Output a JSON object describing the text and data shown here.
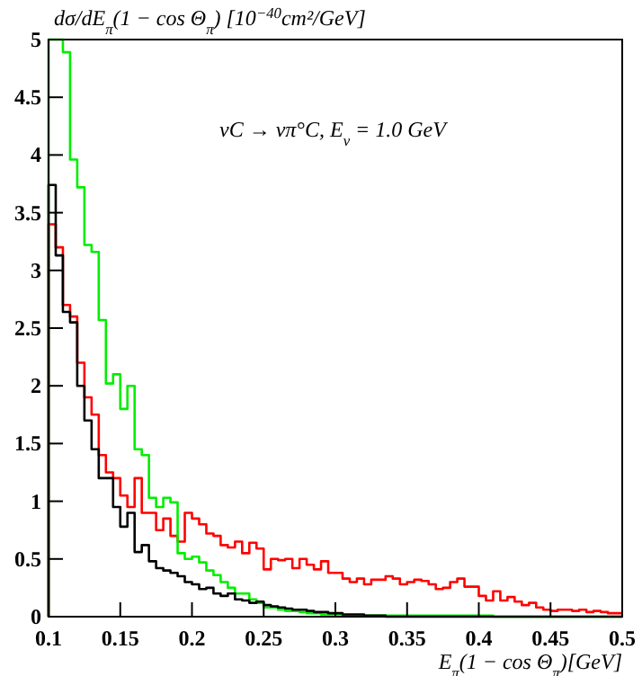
{
  "chart_data": {
    "type": "histogram",
    "ylabel": "dσ/dE$_{π}$(1 − cos Θ$_{π}$)  [10$^{−40}$cm²/GeV]",
    "xlabel": "E$_{π}$(1 − cos Θ$_{π}$)[GeV]",
    "annotations": [
      "νC → νπ°C,  E$_{ν}$ = 1.0 GeV"
    ],
    "bins": [
      0.1,
      0.105,
      0.11,
      0.115,
      0.12,
      0.125,
      0.13,
      0.135,
      0.14,
      0.145,
      0.15,
      0.155,
      0.16,
      0.165,
      0.17,
      0.175,
      0.18,
      0.185,
      0.19,
      0.195,
      0.2,
      0.205,
      0.21,
      0.215,
      0.22,
      0.225,
      0.23,
      0.235,
      0.24,
      0.245,
      0.25,
      0.255,
      0.26,
      0.265,
      0.27,
      0.275,
      0.28,
      0.285,
      0.29,
      0.295,
      0.3,
      0.305,
      0.31,
      0.315,
      0.32,
      0.325,
      0.33,
      0.335,
      0.34,
      0.345,
      0.35,
      0.355,
      0.36,
      0.365,
      0.37,
      0.375,
      0.38,
      0.385,
      0.39,
      0.395,
      0.4,
      0.405,
      0.41,
      0.415,
      0.42,
      0.425,
      0.43,
      0.435,
      0.44,
      0.445,
      0.45,
      0.455,
      0.46,
      0.465,
      0.47,
      0.475,
      0.48,
      0.485,
      0.49,
      0.495,
      0.5
    ],
    "series": [
      {
        "color": "#ff0000",
        "values": [
          3.4,
          3.2,
          2.7,
          2.6,
          2.2,
          1.9,
          1.75,
          1.4,
          1.25,
          1.2,
          1.05,
          0.95,
          1.2,
          0.9,
          0.9,
          0.75,
          0.85,
          0.7,
          0.65,
          0.9,
          0.85,
          0.8,
          0.72,
          0.7,
          0.62,
          0.6,
          0.65,
          0.55,
          0.64,
          0.59,
          0.41,
          0.5,
          0.49,
          0.5,
          0.42,
          0.5,
          0.45,
          0.41,
          0.48,
          0.38,
          0.38,
          0.33,
          0.3,
          0.33,
          0.28,
          0.32,
          0.32,
          0.35,
          0.33,
          0.28,
          0.3,
          0.32,
          0.31,
          0.28,
          0.24,
          0.25,
          0.3,
          0.33,
          0.26,
          0.26,
          0.18,
          0.14,
          0.22,
          0.14,
          0.17,
          0.13,
          0.1,
          0.12,
          0.08,
          0.06,
          0.05,
          0.06,
          0.06,
          0.05,
          0.06,
          0.04,
          0.05,
          0.04,
          0.03,
          0.03
        ]
      },
      {
        "color": "#00ee00",
        "values": [
          5,
          5,
          4.89,
          3.96,
          3.72,
          3.22,
          3.16,
          2.57,
          2.02,
          2.1,
          1.8,
          2.0,
          1.45,
          1.4,
          1.03,
          0.95,
          1.03,
          0.99,
          0.55,
          0.5,
          0.52,
          0.47,
          0.4,
          0.36,
          0.3,
          0.25,
          0.2,
          0.2,
          0.15,
          0.12,
          0.08,
          0.08,
          0.06,
          0.05,
          0.05,
          0.04,
          0.03,
          0.03,
          0.02,
          0.02,
          0.02,
          0.01,
          0.01,
          0.01,
          0.01,
          0.01,
          0.01,
          0.01,
          0.01,
          0.01,
          0.01,
          0.01,
          0.01,
          0.01,
          0.01,
          0.01,
          0.01,
          0.01,
          0.01,
          0.01,
          0.01,
          0.01,
          0,
          0,
          0,
          0,
          0,
          0,
          0,
          0,
          0,
          0,
          0,
          0,
          0,
          0,
          0,
          0,
          0,
          0
        ]
      },
      {
        "color": "#000000",
        "values": [
          3.74,
          3.13,
          2.64,
          2.55,
          2.0,
          1.7,
          1.45,
          1.2,
          1.2,
          0.95,
          0.78,
          0.9,
          0.56,
          0.62,
          0.48,
          0.42,
          0.4,
          0.38,
          0.35,
          0.3,
          0.28,
          0.24,
          0.25,
          0.2,
          0.18,
          0.2,
          0.15,
          0.14,
          0.12,
          0.13,
          0.1,
          0.09,
          0.08,
          0.07,
          0.06,
          0.06,
          0.05,
          0.04,
          0.04,
          0.03,
          0.03,
          0.02,
          0.02,
          0.02,
          0.01,
          0.01,
          0.01,
          0,
          0,
          0,
          0,
          0,
          0,
          0,
          0,
          0,
          0,
          0,
          0,
          0,
          0,
          0,
          0,
          0,
          0,
          0,
          0,
          0,
          0,
          0,
          0,
          0,
          0,
          0,
          0,
          0,
          0,
          0,
          0,
          0
        ]
      }
    ],
    "xlim": [
      0.1,
      0.5
    ],
    "ylim": [
      0,
      5
    ],
    "xticks": [
      0.1,
      0.15,
      0.2,
      0.25,
      0.3,
      0.35,
      0.4,
      0.45,
      0.5
    ],
    "yticks": [
      0,
      0.5,
      1,
      1.5,
      2,
      2.5,
      3,
      3.5,
      4,
      4.5,
      5
    ],
    "grid": false
  }
}
